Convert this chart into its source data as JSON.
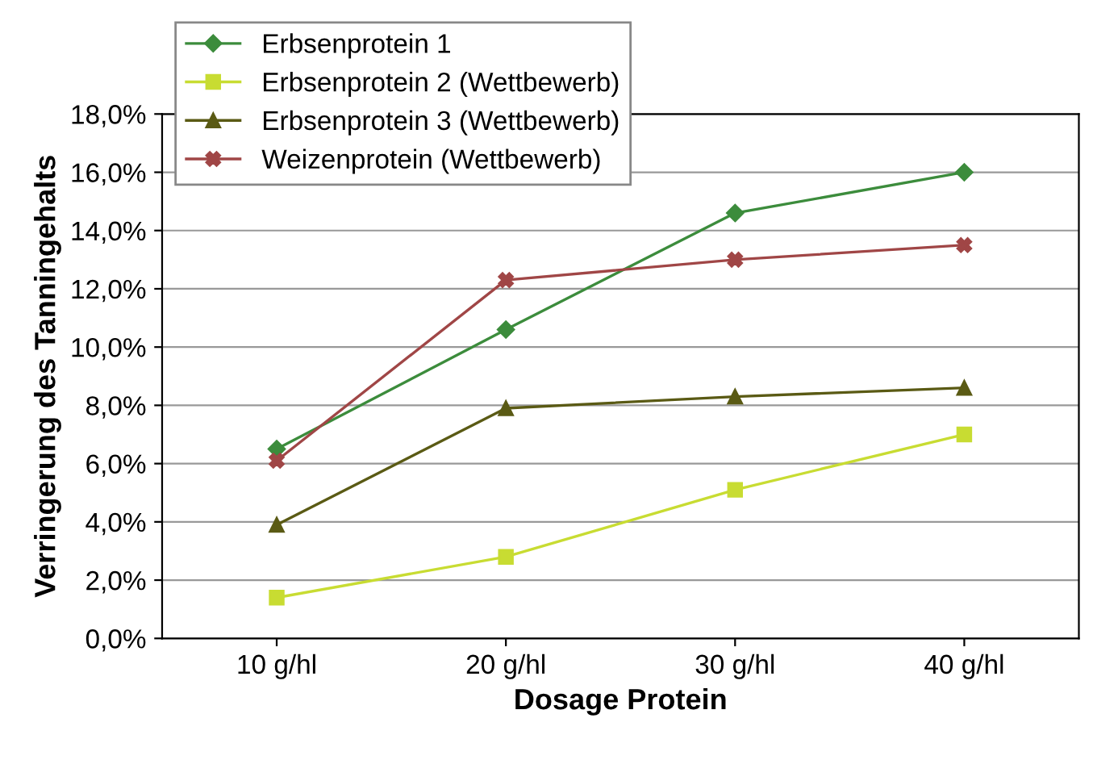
{
  "chart_data": {
    "type": "line",
    "xlabel": "Dosage Protein",
    "ylabel": "Verringerung des Tanningehalts",
    "categories": [
      "10 g/hl",
      "20 g/hl",
      "30 g/hl",
      "40 g/hl"
    ],
    "series": [
      {
        "name": "Erbsenprotein 1",
        "color": "#3c8c3c",
        "marker": "diamond",
        "values": [
          6.5,
          10.6,
          14.6,
          16.0
        ]
      },
      {
        "name": "Erbsenprotein 2 (Wettbewerb)",
        "color": "#c8dc32",
        "marker": "square",
        "values": [
          1.4,
          2.8,
          5.1,
          7.0
        ]
      },
      {
        "name": "Erbsenprotein 3 (Wettbewerb)",
        "color": "#5a5a14",
        "marker": "triangle",
        "values": [
          3.9,
          7.9,
          8.3,
          8.6
        ]
      },
      {
        "name": "Weizenprotein (Wettbewerb)",
        "color": "#a04646",
        "marker": "cross",
        "values": [
          6.1,
          12.3,
          13.0,
          13.5
        ]
      }
    ],
    "ylim": [
      0,
      18
    ],
    "yticks": [
      {
        "value": 0,
        "label": "0,0%"
      },
      {
        "value": 2,
        "label": "2,0%"
      },
      {
        "value": 4,
        "label": "4,0%"
      },
      {
        "value": 6,
        "label": "6,0%"
      },
      {
        "value": 8,
        "label": "8,0%"
      },
      {
        "value": 10,
        "label": "10,0%"
      },
      {
        "value": 12,
        "label": "12,0%"
      },
      {
        "value": 14,
        "label": "14,0%"
      },
      {
        "value": 16,
        "label": "16,0%"
      },
      {
        "value": 18,
        "label": "18,0%"
      }
    ],
    "grid": "y",
    "legend": "top left",
    "line_style": "solid"
  }
}
